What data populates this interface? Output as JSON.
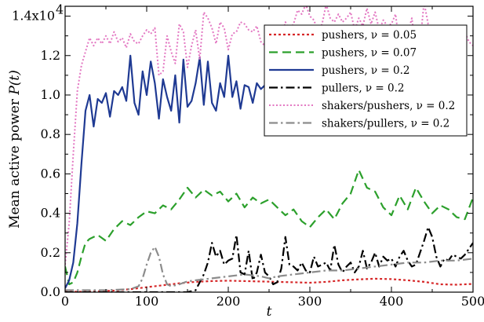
{
  "chart_data": {
    "type": "line",
    "xlabel": "t",
    "ylabel_text": "Mean active power ",
    "ylabel_symbol": "P(t)",
    "xlim": [
      0,
      500
    ],
    "ylim": [
      0,
      14500
    ],
    "x_ticks": [
      0,
      100,
      200,
      300,
      400,
      500
    ],
    "x_tick_labels": [
      "0",
      "100",
      "200",
      "300",
      "400",
      "500"
    ],
    "y_ticks": [
      0,
      2000,
      4000,
      6000,
      8000,
      10000,
      12000,
      14000
    ],
    "y_tick_labels": [
      "0.0",
      "0.2",
      "0.4",
      "0.6",
      "0.8",
      "1.0",
      "1.2",
      "1.4x10"
    ],
    "y_tick_exponent": "4",
    "grid": false,
    "legend_position": "top-right",
    "series": [
      {
        "name": "pushers, ν = 0.05",
        "color": "#d62728",
        "dash": "dotted-dense",
        "x": [
          0,
          20,
          40,
          60,
          80,
          100,
          120,
          140,
          160,
          180,
          200,
          220,
          240,
          260,
          280,
          300,
          320,
          340,
          360,
          380,
          400,
          420,
          440,
          460,
          480,
          500
        ],
        "y": [
          20,
          20,
          40,
          80,
          150,
          250,
          350,
          450,
          520,
          560,
          580,
          560,
          540,
          520,
          500,
          480,
          520,
          600,
          650,
          680,
          660,
          600,
          520,
          400,
          380,
          420
        ]
      },
      {
        "name": "pushers, ν = 0.07",
        "color": "#2ca02c",
        "dash": "dashed",
        "x": [
          0,
          5,
          10,
          15,
          20,
          25,
          30,
          40,
          50,
          60,
          70,
          80,
          90,
          100,
          110,
          120,
          130,
          140,
          150,
          160,
          170,
          180,
          190,
          200,
          210,
          220,
          230,
          240,
          250,
          260,
          270,
          280,
          290,
          300,
          310,
          320,
          330,
          340,
          350,
          360,
          370,
          380,
          390,
          400,
          410,
          420,
          430,
          440,
          450,
          460,
          470,
          480,
          490,
          500
        ],
        "y": [
          1300,
          400,
          500,
          1000,
          1800,
          2500,
          2700,
          2900,
          2600,
          3200,
          3600,
          3400,
          3800,
          4100,
          4000,
          4400,
          4200,
          4700,
          5300,
          4800,
          5200,
          4900,
          5100,
          4600,
          5000,
          4300,
          4800,
          4500,
          4700,
          4300,
          3900,
          4200,
          3600,
          3300,
          3800,
          4200,
          3700,
          4500,
          5000,
          6200,
          5300,
          5100,
          4300,
          3900,
          4900,
          4200,
          5300,
          4600,
          4000,
          4400,
          4200,
          3800,
          3700,
          4800
        ]
      },
      {
        "name": "pushers, ν = 0.2",
        "color": "#1f3a93",
        "dash": "solid",
        "x": [
          0,
          5,
          10,
          15,
          20,
          25,
          30,
          35,
          40,
          45,
          50,
          55,
          60,
          65,
          70,
          75,
          80,
          85,
          90,
          95,
          100,
          105,
          110,
          115,
          120,
          125,
          130,
          135,
          140,
          145,
          150,
          155,
          160,
          165,
          170,
          175,
          180,
          185,
          190,
          195,
          200,
          205,
          210,
          215,
          220,
          225,
          230,
          235,
          240,
          245,
          250
        ],
        "y": [
          200,
          600,
          1500,
          3500,
          6500,
          9200,
          10000,
          8400,
          9800,
          9600,
          10100,
          8900,
          10200,
          10000,
          10400,
          9700,
          12000,
          9600,
          9000,
          11200,
          10000,
          11700,
          10600,
          8800,
          10800,
          9900,
          9200,
          11000,
          8600,
          11800,
          9400,
          9700,
          10600,
          11900,
          9500,
          11700,
          9600,
          9200,
          10600,
          9900,
          12000,
          9900,
          10700,
          9300,
          10500,
          10400,
          9600,
          10600,
          10300,
          10500,
          8300
        ]
      },
      {
        "name": "pullers,  ν = 0.2",
        "color": "#000000",
        "dash": "dashdot",
        "x": [
          0,
          50,
          100,
          150,
          160,
          170,
          175,
          180,
          185,
          190,
          195,
          200,
          205,
          210,
          215,
          220,
          225,
          230,
          235,
          240,
          245,
          250,
          255,
          260,
          265,
          270,
          275,
          280,
          285,
          290,
          295,
          300,
          305,
          310,
          315,
          320,
          325,
          330,
          335,
          340,
          345,
          350,
          355,
          360,
          365,
          370,
          375,
          380,
          385,
          390,
          395,
          400,
          405,
          410,
          415,
          420,
          425,
          430,
          435,
          440,
          445,
          450,
          455,
          460,
          465,
          470,
          475,
          480,
          485,
          490,
          495,
          500
        ],
        "y": [
          0,
          0,
          0,
          0,
          100,
          900,
          1500,
          2500,
          1800,
          2100,
          1400,
          1600,
          1700,
          2900,
          1000,
          900,
          2100,
          600,
          1000,
          1900,
          1000,
          800,
          400,
          500,
          1200,
          2800,
          1400,
          1300,
          1100,
          1500,
          1100,
          1000,
          1800,
          1300,
          1400,
          1500,
          1100,
          2400,
          1400,
          1000,
          1300,
          1500,
          1000,
          1300,
          2100,
          1200,
          1500,
          2000,
          1300,
          1800,
          1600,
          1700,
          1300,
          1800,
          2100,
          1600,
          1300,
          1400,
          2000,
          2600,
          3300,
          2800,
          1800,
          1300,
          1700,
          1600,
          1900,
          1800,
          1700,
          1900,
          2200,
          2500
        ]
      },
      {
        "name": "shakers/pushers, ν = 0.2",
        "color": "#e377c2",
        "dash": "dotted",
        "x": [
          0,
          5,
          10,
          15,
          20,
          25,
          30,
          35,
          40,
          45,
          50,
          55,
          60,
          65,
          70,
          75,
          80,
          85,
          90,
          95,
          100,
          105,
          110,
          115,
          120,
          125,
          130,
          135,
          140,
          145,
          150,
          155,
          160,
          165,
          170,
          175,
          180,
          185,
          190,
          195,
          200,
          205,
          210,
          215,
          220,
          225,
          230,
          235,
          240,
          245,
          250,
          255,
          260,
          265,
          270,
          275,
          280,
          285,
          290,
          295,
          300,
          305,
          310,
          315,
          320,
          325,
          330,
          335,
          340,
          345,
          350,
          355,
          360,
          365,
          370,
          375,
          380,
          385,
          390,
          395,
          400,
          405,
          410,
          415,
          420,
          425,
          430,
          435,
          440,
          445,
          450,
          455,
          460,
          465,
          470,
          475,
          480,
          485,
          490,
          495,
          500
        ],
        "y": [
          1400,
          3500,
          7000,
          10200,
          11500,
          12200,
          12900,
          12500,
          12900,
          12600,
          13000,
          12600,
          13200,
          12700,
          12900,
          12400,
          13100,
          12700,
          12600,
          13000,
          13300,
          13100,
          13400,
          11000,
          11200,
          13000,
          12200,
          11600,
          13600,
          13200,
          11400,
          12500,
          13300,
          11800,
          14200,
          13900,
          13400,
          12600,
          13700,
          13400,
          12300,
          13100,
          13200,
          13700,
          13600,
          13300,
          13200,
          13500,
          12700,
          12500,
          13300,
          11200,
          13100,
          12900,
          13700,
          13300,
          13600,
          14300,
          14100,
          14600,
          14000,
          13800,
          13200,
          13600,
          14600,
          13900,
          13700,
          14100,
          13700,
          13900,
          14200,
          13300,
          13900,
          13500,
          14400,
          13600,
          14200,
          13300,
          13800,
          13500,
          13600,
          14100,
          12500,
          13400,
          13100,
          13900,
          12300,
          12600,
          14700,
          13600,
          13300,
          13200,
          13400,
          13400,
          12200,
          13200,
          12600,
          13400,
          13200,
          12700,
          12500
        ]
      },
      {
        "name": "shakers/pullers, ν = 0.2",
        "color": "#8c8c8c",
        "dash": "dashdot",
        "x": [
          0,
          50,
          80,
          90,
          95,
          100,
          105,
          110,
          115,
          120,
          125,
          130,
          140,
          150,
          160,
          180,
          200,
          220,
          240,
          250,
          260,
          280,
          300,
          320,
          340,
          360,
          380,
          400,
          420,
          440,
          460,
          480,
          500
        ],
        "y": [
          100,
          100,
          150,
          300,
          700,
          1400,
          2000,
          2300,
          1800,
          900,
          400,
          300,
          400,
          550,
          600,
          700,
          800,
          900,
          800,
          700,
          800,
          900,
          1000,
          1100,
          1100,
          1200,
          1300,
          1400,
          1500,
          1500,
          1600,
          1600,
          1700
        ]
      }
    ]
  }
}
